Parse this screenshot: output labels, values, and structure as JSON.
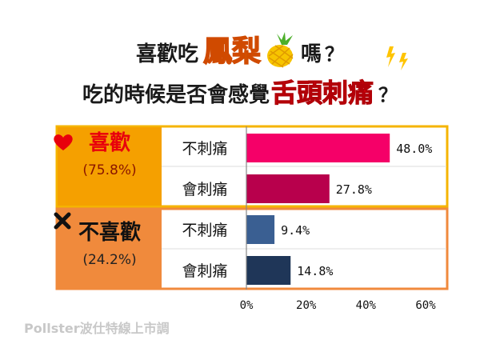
{
  "title": {
    "line1_prefix": "喜歡吃",
    "line1_highlight": "鳳梨",
    "line1_suffix": "嗎",
    "line1_qmark": "？",
    "line2_prefix": "吃的時候是否會感覺",
    "line2_highlight": "舌頭刺痛",
    "line2_qmark": "？"
  },
  "groups": [
    {
      "label": "喜歡",
      "share": "(75.8%)",
      "color": "#f5a000",
      "icon": "heart-icon",
      "icon_color": "#e8000c"
    },
    {
      "label": "不喜歡",
      "share": "(24.2%)",
      "color": "#f08a3c",
      "icon": "cross-icon",
      "icon_color": "#111111"
    }
  ],
  "colors": {
    "highlight_pineapple": "#f5a000",
    "highlight_tongue": "#e8000c",
    "bar_like_no_pain": "#f50068",
    "bar_like_pain": "#b8004c",
    "bar_dislike_no_pain": "#3a5f92",
    "bar_dislike_pain": "#1f3658"
  },
  "chart_data": {
    "type": "bar",
    "orientation": "horizontal",
    "groups": [
      "喜歡",
      "不喜歡"
    ],
    "categories": [
      "不刺痛",
      "會刺痛",
      "不刺痛",
      "會刺痛"
    ],
    "values": [
      48.0,
      27.8,
      9.4,
      14.8
    ],
    "value_labels": [
      "48.0%",
      "27.8%",
      "9.4%",
      "14.8%"
    ],
    "xlim": [
      0,
      60
    ],
    "xticks": [
      0,
      20,
      40,
      60
    ],
    "xtick_labels": [
      "0%",
      "20%",
      "40%",
      "60%"
    ],
    "grid": false
  },
  "watermark": "Pollster波仕特線上市調"
}
